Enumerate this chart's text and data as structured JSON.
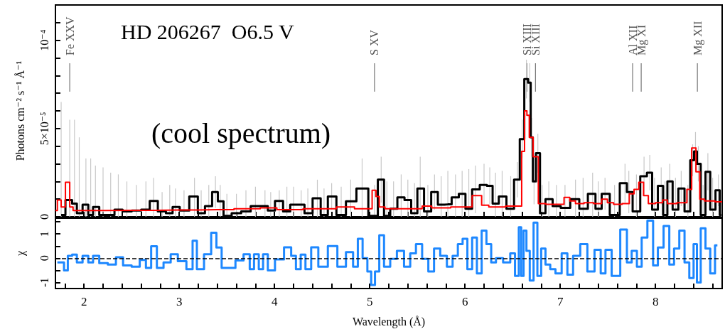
{
  "chart_data": [
    {
      "type": "step",
      "title": "HD 206267  O6.5 V",
      "subtitle": "(cool spectrum)",
      "ylabel": "Photons cm⁻² s⁻¹ Å⁻¹",
      "marker": "none",
      "tick_labels": "y",
      "xlim": [
        1.7,
        8.7
      ],
      "xticks": [
        {
          "value": 1.8,
          "label": null
        },
        2,
        {
          "value": 2.2,
          "label": null
        },
        {
          "value": 2.4,
          "label": null
        },
        {
          "value": 2.6,
          "label": null
        },
        {
          "value": 2.8,
          "label": null
        },
        3,
        {
          "value": 3.2,
          "label": null
        },
        {
          "value": 3.4,
          "label": null
        },
        {
          "value": 3.6,
          "label": null
        },
        {
          "value": 3.8,
          "label": null
        },
        4,
        {
          "value": 4.2,
          "label": null
        },
        {
          "value": 4.4,
          "label": null
        },
        {
          "value": 4.6,
          "label": null
        },
        {
          "value": 4.8,
          "label": null
        },
        5,
        {
          "value": 5.2,
          "label": null
        },
        {
          "value": 5.4,
          "label": null
        },
        {
          "value": 5.6,
          "label": null
        },
        {
          "value": 5.8,
          "label": null
        },
        6,
        {
          "value": 6.2,
          "label": null
        },
        {
          "value": 6.4,
          "label": null
        },
        {
          "value": 6.6,
          "label": null
        },
        {
          "value": 6.8,
          "label": null
        },
        7,
        {
          "value": 7.2,
          "label": null
        },
        {
          "value": 7.4,
          "label": null
        },
        {
          "value": 7.6,
          "label": null
        },
        {
          "value": 7.8,
          "label": null
        },
        8,
        {
          "value": 8.2,
          "label": null
        },
        {
          "value": 8.4,
          "label": null
        },
        {
          "value": 8.6,
          "label": null
        }
      ],
      "ylim": [
        0,
        0.00012
      ],
      "yticks": [
        0,
        {
          "value": 1e-05,
          "label": null
        },
        {
          "value": 2e-05,
          "label": null
        },
        {
          "value": 3e-05,
          "label": null
        },
        {
          "value": 4e-05,
          "label": null
        },
        {
          "value": 5e-05,
          "label": "5×10⁻⁵"
        },
        {
          "value": 6e-05,
          "label": null
        },
        {
          "value": 7e-05,
          "label": null
        },
        {
          "value": 8e-05,
          "label": null
        },
        {
          "value": 9e-05,
          "label": null
        },
        {
          "value": 0.0001,
          "label": "10⁻⁴"
        },
        {
          "value": 0.00011,
          "label": null
        }
      ],
      "ref_lines": [
        {
          "axis": "x",
          "value": 1.85,
          "label": "Fe XXV",
          "color": "#777777"
        },
        {
          "axis": "x",
          "value": 5.05,
          "label": "S XV",
          "color": "#777777"
        },
        {
          "axis": "x",
          "value": 6.65,
          "label": "Si XIII",
          "color": "#777777"
        },
        {
          "axis": "x",
          "value": 6.74,
          "label": "Si XIII",
          "color": "#777777"
        },
        {
          "axis": "x",
          "value": 7.76,
          "label": "Al XII",
          "color": "#777777"
        },
        {
          "axis": "x",
          "value": 7.85,
          "label": "Mg XI",
          "color": "#777777"
        },
        {
          "axis": "x",
          "value": 8.44,
          "label": "Mg XII",
          "color": "#777777"
        }
      ],
      "series": [
        {
          "color": "#000000",
          "x": [
            1.76,
            1.85,
            1.9,
            1.95,
            2.02,
            2.07,
            2.12,
            2.2,
            2.28,
            2.36,
            2.45,
            2.55,
            2.65,
            2.73,
            2.82,
            2.9,
            2.96,
            3.05,
            3.16,
            3.23,
            3.31,
            3.38,
            3.43,
            3.5,
            3.6,
            3.7,
            3.8,
            3.9,
            3.96,
            4.05,
            4.13,
            4.2,
            4.28,
            4.35,
            4.45,
            4.52,
            4.6,
            4.7,
            4.8,
            4.92,
            5.05,
            5.12,
            5.18,
            5.25,
            5.33,
            5.4,
            5.47,
            5.53,
            5.61,
            5.68,
            5.75,
            5.82,
            5.9,
            5.97,
            6.04,
            6.11,
            6.2,
            6.26,
            6.32,
            6.39,
            6.48,
            6.55,
            6.6,
            6.645,
            6.68,
            6.7,
            6.725,
            6.765,
            6.81,
            6.88,
            6.96,
            7.05,
            7.16,
            7.24,
            7.34,
            7.4,
            7.47,
            7.57,
            7.68,
            7.72,
            7.8,
            7.88,
            7.94,
            7.99,
            8.06,
            8.1,
            8.15,
            8.21,
            8.27,
            8.34,
            8.39,
            8.42,
            8.45,
            8.5,
            8.55,
            8.6,
            8.66,
            8.69
          ],
          "values": [
            1e-06,
            9.5e-06,
            7.5e-06,
            2e-06,
            6.8e-06,
            1e-06,
            5.5e-06,
            1e-06,
            1e-06,
            4e-06,
            3e-06,
            3.5e-06,
            4e-06,
            9e-06,
            3e-06,
            2e-06,
            5.5e-06,
            3.5e-06,
            1.15e-05,
            2e-06,
            6e-06,
            1.4e-05,
            8.8e-06,
            5e-07,
            2e-06,
            3e-06,
            6e-06,
            6e-06,
            3.5e-06,
            9e-06,
            3e-06,
            6.8e-06,
            6.8e-06,
            2e-06,
            1.05e-05,
            1e-06,
            1.15e-05,
            1e-06,
            8.8e-06,
            1.6e-05,
            5e-07,
            2.1e-05,
            5e-07,
            4.5e-06,
            1.1e-05,
            9.5e-06,
            2e-06,
            1.6e-05,
            3e-06,
            1.4e-05,
            6.8e-06,
            7e-06,
            1.1e-05,
            1.3e-05,
            4.5e-06,
            1.55e-05,
            1.8e-05,
            1.75e-05,
            7.5e-06,
            1.15e-05,
            4.5e-06,
            2.1e-05,
            4.4e-05,
            7.8e-05,
            7.6e-05,
            4.5e-05,
            2e-05,
            3.6e-05,
            2e-06,
            1e-05,
            6e-06,
            5e-06,
            1e-05,
            4.5e-06,
            1.3e-05,
            4.5e-06,
            1.3e-05,
            1e-06,
            1.9e-05,
            1.4e-05,
            3e-06,
            2.3e-05,
            2.5e-05,
            4e-06,
            1.75e-05,
            1e-06,
            2e-05,
            4e-06,
            1.6e-05,
            3e-06,
            3.2e-05,
            3.7e-05,
            3e-05,
            1e-06,
            2.55e-05,
            4e-06,
            1.5e-05,
            1e-06
          ],
          "errors": [
            [
              0,
              6.5e-05
            ],
            [
              0,
              5.5e-05
            ],
            [
              0,
              5.5e-05
            ],
            [
              0,
              4.5e-05
            ],
            [
              0,
              3.3e-05
            ],
            [
              0,
              3.3e-05
            ],
            [
              0,
              2.9e-05
            ],
            [
              0,
              2.8e-05
            ],
            [
              0,
              2.5e-05
            ],
            [
              0,
              2.4e-05
            ],
            [
              0,
              2e-05
            ],
            [
              0,
              1.8e-05
            ],
            [
              0,
              2e-05
            ],
            [
              0,
              2.2e-05
            ],
            [
              0,
              1.4e-05
            ],
            [
              0,
              1.8e-05
            ],
            [
              0,
              1.6e-05
            ],
            [
              0,
              1.5e-05
            ],
            [
              0,
              2.2e-05
            ],
            [
              0,
              1.5e-05
            ],
            [
              0,
              1.8e-05
            ],
            [
              5e-06,
              2.3e-05
            ],
            [
              0,
              1.8e-05
            ],
            [
              0,
              1.3e-05
            ],
            [
              0,
              1.3e-05
            ],
            [
              0,
              1.5e-05
            ],
            [
              0,
              1.7e-05
            ],
            [
              0,
              1.5e-05
            ],
            [
              0,
              1.4e-05
            ],
            [
              0,
              1.5e-05
            ],
            [
              0,
              1.7e-05
            ],
            [
              0,
              1.7e-05
            ],
            [
              0,
              1.5e-05
            ],
            [
              0,
              1.6e-05
            ],
            [
              0,
              2.1e-05
            ],
            [
              0,
              1.6e-05
            ],
            [
              4e-06,
              1.9e-05
            ],
            [
              0,
              1.7e-05
            ],
            [
              0,
              2.1e-05
            ],
            [
              0,
              3.3e-05
            ],
            [
              0,
              1.8e-05
            ],
            [
              8e-06,
              3.4e-05
            ],
            [
              0,
              2e-05
            ],
            [
              0,
              2e-05
            ],
            [
              0,
              2.4e-05
            ],
            [
              0,
              2.1e-05
            ],
            [
              0,
              1.9e-05
            ],
            [
              0,
              3.4e-05
            ],
            [
              0,
              1.8e-05
            ],
            [
              4e-06,
              2.4e-05
            ],
            [
              0,
              2.3e-05
            ],
            [
              0,
              2.6e-05
            ],
            [
              0,
              2.4e-05
            ],
            [
              0,
              2.6e-05
            ],
            [
              0,
              2.7e-05
            ],
            [
              2e-06,
              2.9e-05
            ],
            [
              6e-06,
              3e-05
            ],
            [
              7e-06,
              2.8e-05
            ],
            [
              0,
              2.5e-05
            ],
            [
              0,
              2.6e-05
            ],
            [
              0,
              2.3e-05
            ],
            [
              1.1e-05,
              3.1e-05
            ],
            [
              3.3e-05,
              5.5e-05
            ],
            [
              6.7e-05,
              8.9e-05
            ],
            [
              6.5e-05,
              8.7e-05
            ],
            [
              3.4e-05,
              5.6e-05
            ],
            [
              7e-06,
              3.3e-05
            ],
            [
              2.5e-05,
              4.7e-05
            ],
            [
              0,
              1.8e-05
            ],
            [
              0,
              2e-05
            ],
            [
              0,
              1.8e-05
            ],
            [
              0,
              1.8e-05
            ],
            [
              0,
              2.1e-05
            ],
            [
              0,
              2.2e-05
            ],
            [
              0,
              2.5e-05
            ],
            [
              0,
              2e-05
            ],
            [
              4e-06,
              2.2e-05
            ],
            [
              0,
              1.8e-05
            ],
            [
              8e-06,
              3e-05
            ],
            [
              2e-06,
              2.6e-05
            ],
            [
              0,
              2.4e-05
            ],
            [
              1.2e-05,
              3.4e-05
            ],
            [
              1.5e-05,
              3.5e-05
            ],
            [
              0,
              2.2e-05
            ],
            [
              7e-06,
              2.8e-05
            ],
            [
              0,
              2e-05
            ],
            [
              1e-05,
              3e-05
            ],
            [
              0,
              2.2e-05
            ],
            [
              6e-06,
              2.6e-05
            ],
            [
              0,
              1.8e-05
            ],
            [
              2.3e-05,
              4.1e-05
            ],
            [
              2.6e-05,
              4.8e-05
            ],
            [
              2e-05,
              4e-05
            ],
            [
              0,
              1.8e-05
            ],
            [
              1.5e-05,
              3.6e-05
            ],
            [
              0,
              2.2e-05
            ],
            [
              6e-06,
              2.4e-05
            ],
            [
              0,
              1.5e-05
            ]
          ]
        },
        {
          "color": "#ff0000",
          "x": [
            1.7,
            1.74,
            1.78,
            1.83,
            1.87,
            1.9,
            2.5,
            3.0,
            3.4,
            3.75,
            3.95,
            4.1,
            4.5,
            4.8,
            4.88,
            5.0,
            5.05,
            5.08,
            5.12,
            5.2,
            5.5,
            5.6,
            5.7,
            6.0,
            6.15,
            6.2,
            6.3,
            6.55,
            6.58,
            6.61,
            6.64,
            6.66,
            6.69,
            6.74,
            6.8,
            6.9,
            7.0,
            7.08,
            7.12,
            7.2,
            7.3,
            7.4,
            7.47,
            7.52,
            7.6,
            7.7,
            7.75,
            7.8,
            7.85,
            7.9,
            7.95,
            8.05,
            8.1,
            8.15,
            8.3,
            8.36,
            8.4,
            8.45,
            8.48,
            8.55,
            8.7
          ],
          "values": [
            3.5e-06,
            9.5e-06,
            5.5e-06,
            1.95e-05,
            5.5e-06,
            3.5e-06,
            3.6e-06,
            3.8e-06,
            4e-06,
            4.5e-06,
            5e-06,
            4e-06,
            4.5e-06,
            5.5e-06,
            4.5e-06,
            4.5e-06,
            1.5e-05,
            1.15e-05,
            5.5e-06,
            4.5e-06,
            4.5e-06,
            6e-06,
            5e-06,
            5.5e-06,
            1.2e-05,
            6.5e-06,
            5.5e-06,
            6e-06,
            6e-06,
            3.7e-05,
            6e-05,
            5.75e-05,
            4.5e-05,
            3.4e-05,
            7.5e-06,
            7e-06,
            7e-06,
            1.1e-05,
            9e-06,
            7.5e-06,
            8e-06,
            7.5e-06,
            1e-05,
            8e-06,
            7e-06,
            7.5e-06,
            1.3e-05,
            1.55e-05,
            1.95e-05,
            1.2e-05,
            7.5e-06,
            8e-06,
            9.5e-06,
            7.5e-06,
            8e-06,
            1.55e-05,
            3.9e-05,
            2.55e-05,
            1e-05,
            9e-06,
            8.5e-06
          ]
        }
      ]
    },
    {
      "type": "step",
      "xlabel": "Wavelength (Å)",
      "ylabel": "χ",
      "marker": "none",
      "xlim": [
        1.7,
        8.7
      ],
      "xticks": [
        {
          "value": 1.8,
          "label": null
        },
        2,
        {
          "value": 2.2,
          "label": null
        },
        {
          "value": 2.4,
          "label": null
        },
        {
          "value": 2.6,
          "label": null
        },
        {
          "value": 2.8,
          "label": null
        },
        3,
        {
          "value": 3.2,
          "label": null
        },
        {
          "value": 3.4,
          "label": null
        },
        {
          "value": 3.6,
          "label": null
        },
        {
          "value": 3.8,
          "label": null
        },
        4,
        {
          "value": 4.2,
          "label": null
        },
        {
          "value": 4.4,
          "label": null
        },
        {
          "value": 4.6,
          "label": null
        },
        {
          "value": 4.8,
          "label": null
        },
        5,
        {
          "value": 5.2,
          "label": null
        },
        {
          "value": 5.4,
          "label": null
        },
        {
          "value": 5.6,
          "label": null
        },
        {
          "value": 5.8,
          "label": null
        },
        6,
        {
          "value": 6.2,
          "label": null
        },
        {
          "value": 6.4,
          "label": null
        },
        {
          "value": 6.6,
          "label": null
        },
        {
          "value": 6.8,
          "label": null
        },
        7,
        {
          "value": 7.2,
          "label": null
        },
        {
          "value": 7.4,
          "label": null
        },
        {
          "value": 7.6,
          "label": null
        },
        {
          "value": 7.8,
          "label": null
        },
        8,
        {
          "value": 8.2,
          "label": null
        },
        {
          "value": 8.4,
          "label": null
        },
        {
          "value": 8.6,
          "label": null
        }
      ],
      "ylim": [
        -1.25,
        1.65
      ],
      "yticks": [
        -1,
        {
          "value": -0.5,
          "label": null
        },
        0,
        {
          "value": 0.5,
          "label": null
        },
        1,
        {
          "value": 1.5,
          "label": null
        }
      ],
      "ref_lines": [
        {
          "axis": "y",
          "value": 0,
          "color": "#000000",
          "line_style": "dashed"
        }
      ],
      "series": [
        {
          "color": "#1e88ff",
          "x": [
            1.72,
            1.77,
            1.81,
            1.85,
            1.9,
            1.95,
            2.02,
            2.07,
            2.12,
            2.2,
            2.3,
            2.37,
            2.45,
            2.55,
            2.62,
            2.68,
            2.73,
            2.8,
            2.87,
            2.95,
            3.02,
            3.13,
            3.15,
            3.22,
            3.3,
            3.37,
            3.41,
            3.48,
            3.55,
            3.63,
            3.72,
            3.76,
            3.81,
            3.86,
            3.9,
            3.96,
            4.05,
            4.15,
            4.2,
            4.25,
            4.3,
            4.35,
            4.42,
            4.5,
            4.62,
            4.7,
            4.8,
            4.85,
            4.9,
            4.95,
            5.0,
            5.03,
            5.08,
            5.12,
            5.18,
            5.25,
            5.32,
            5.4,
            5.45,
            5.52,
            5.58,
            5.65,
            5.7,
            5.78,
            5.84,
            5.9,
            5.95,
            6.0,
            6.05,
            6.1,
            6.15,
            6.2,
            6.25,
            6.3,
            6.35,
            6.45,
            6.5,
            6.55,
            6.58,
            6.6,
            6.63,
            6.66,
            6.7,
            6.74,
            6.78,
            6.82,
            6.87,
            6.92,
            6.98,
            7.05,
            7.1,
            7.17,
            7.25,
            7.32,
            7.4,
            7.45,
            7.5,
            7.58,
            7.68,
            7.72,
            7.78,
            7.83,
            7.88,
            7.95,
            8.0,
            8.05,
            8.12,
            8.17,
            8.22,
            8.28,
            8.33,
            8.38,
            8.42,
            8.45,
            8.5,
            8.55,
            8.6,
            8.65
          ],
          "values": [
            -0.17,
            -0.17,
            -0.5,
            0.1,
            0.15,
            -0.17,
            0.1,
            -0.17,
            0.1,
            -0.2,
            -0.26,
            0.04,
            -0.3,
            -0.35,
            -0.07,
            -0.4,
            0.49,
            -0.4,
            -0.17,
            0.16,
            -0.12,
            -0.45,
            0.72,
            -0.45,
            0.16,
            1.05,
            0.44,
            -0.4,
            -0.4,
            -0.09,
            0.16,
            -0.45,
            0.16,
            -0.45,
            0.16,
            -0.5,
            -0.05,
            0.45,
            0.1,
            -0.45,
            0.15,
            -0.45,
            0.45,
            -0.35,
            0.5,
            -0.35,
            0.25,
            -0.35,
            0.8,
            0,
            -0.55,
            -1.1,
            -0.55,
            0.95,
            -0.35,
            -0.03,
            0.3,
            -0.35,
            0.2,
            0.58,
            -0.03,
            -0.55,
            0.4,
            0.1,
            -0.35,
            0.1,
            0.58,
            0.8,
            -0.45,
            0.85,
            -0.63,
            1.14,
            0.58,
            -0.17,
            0,
            -0.17,
            0.2,
            -0.73,
            1.28,
            -0.73,
            1.14,
            0.3,
            -0.92,
            1.47,
            -0.73,
            0.4,
            -0.26,
            -0.45,
            -0.63,
            0.2,
            -0.68,
            0.1,
            0.58,
            -0.55,
            0.35,
            -0.63,
            0.35,
            -0.73,
            1.18,
            -0.17,
            0.3,
            -0.35,
            0.85,
            1.55,
            -0.3,
            0.44,
            1.33,
            -0.26,
            0.4,
            1.14,
            -0.17,
            -0.82,
            0.58,
            -1.0,
            1.23,
            0.4,
            -0.63,
            0.53
          ]
        }
      ]
    }
  ]
}
